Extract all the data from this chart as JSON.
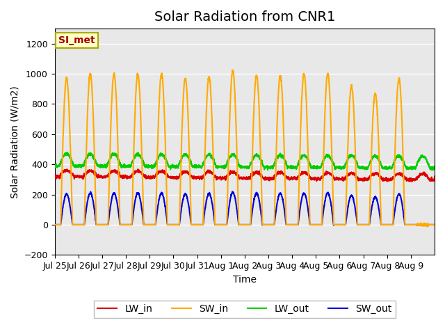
{
  "title": "Solar Radiation from CNR1",
  "xlabel": "Time",
  "ylabel": "Solar Radiation (W/m2)",
  "ylim": [
    -200,
    1300
  ],
  "yticks": [
    -200,
    0,
    200,
    400,
    600,
    800,
    1000,
    1200
  ],
  "x_tick_labels": [
    "Jul 25",
    "Jul 26",
    "Jul 27",
    "Jul 28",
    "Jul 29",
    "Jul 30",
    "Jul 31",
    "Aug 1",
    "Aug 2",
    "Aug 3",
    "Aug 4",
    "Aug 5",
    "Aug 6",
    "Aug 7",
    "Aug 8",
    "Aug 9"
  ],
  "legend_labels": [
    "LW_in",
    "SW_in",
    "LW_out",
    "SW_out"
  ],
  "legend_colors": [
    "#dd0000",
    "#ffaa00",
    "#00cc00",
    "#0000dd"
  ],
  "bg_color": "#e8e8e8",
  "annotation_text": "SI_met",
  "annotation_color": "#aa0000",
  "annotation_bg": "#ffffcc",
  "annotation_border": "#aaaa00",
  "n_days": 16,
  "lw_in_base": 320,
  "lw_in_day_amp": 40,
  "sw_in_peak": 1000,
  "lw_out_base": 390,
  "lw_out_day_amp": 80,
  "sw_out_peak": 210,
  "pts_per_day": 144,
  "line_width": 1.5,
  "grid_color": "#ffffff",
  "title_fontsize": 14,
  "label_fontsize": 10,
  "tick_fontsize": 9,
  "legend_fontsize": 10
}
